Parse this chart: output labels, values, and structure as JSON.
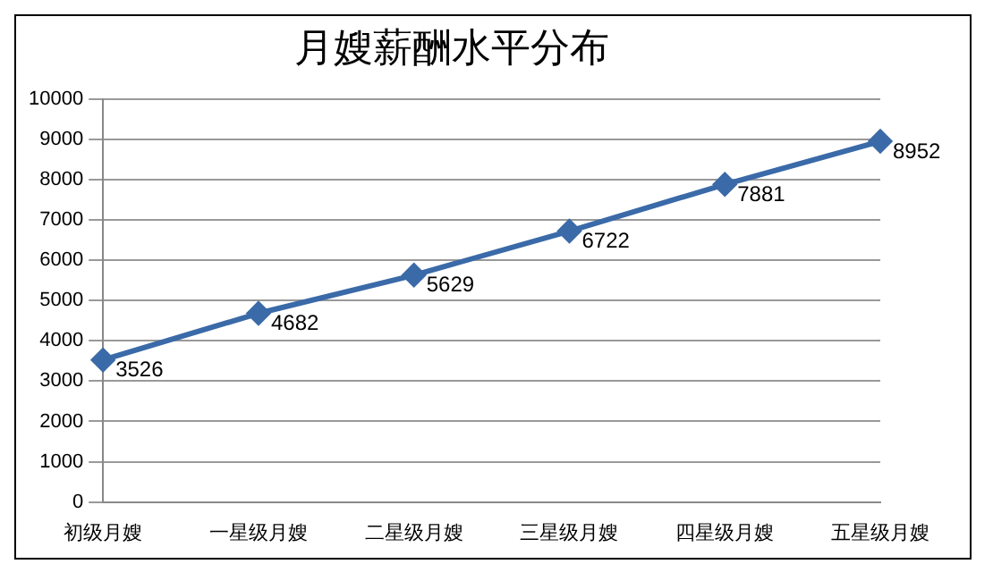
{
  "chart_data": {
    "type": "line",
    "title": "月嫂薪酬水平分布",
    "categories": [
      "初级月嫂",
      "一星级月嫂",
      "二星级月嫂",
      "三星级月嫂",
      "四星级月嫂",
      "五星级月嫂"
    ],
    "series": [
      {
        "color": "#3a6aa8",
        "values": [
          3526,
          4682,
          5629,
          6722,
          7881,
          8952
        ]
      }
    ],
    "ylim": [
      0,
      10000
    ],
    "yticks": [
      0,
      1000,
      2000,
      3000,
      4000,
      5000,
      6000,
      7000,
      8000,
      9000,
      10000
    ],
    "grid": "y",
    "marker": "diamond",
    "line_style": "solid",
    "data_labels": true,
    "legend": false
  }
}
